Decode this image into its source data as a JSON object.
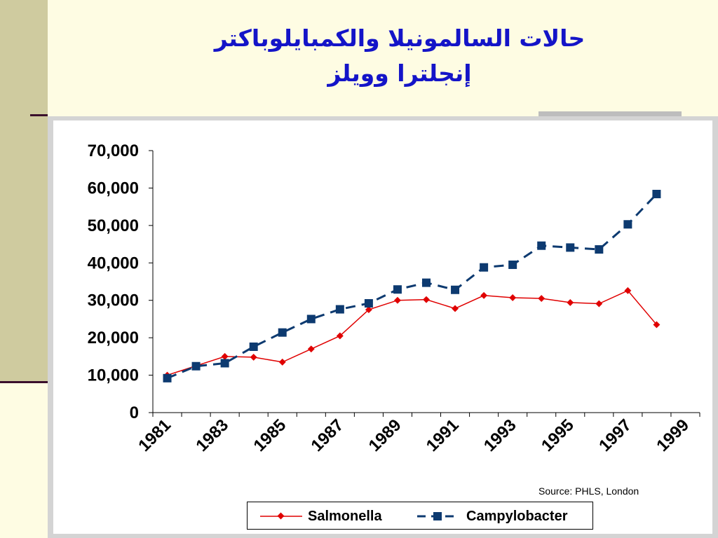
{
  "slide": {
    "title_line1": "حالات السالمونيلا والكمبايلوباكتر",
    "title_line2": "إنجلترا وويلز",
    "source": "Source: PHLS, London",
    "colors": {
      "background": "#FEFCE3",
      "sidebar": "#CFCB9F",
      "title": "#1414C8",
      "rule": "#3A0F2C"
    }
  },
  "chart_data": {
    "type": "line",
    "title": "",
    "xlabel": "",
    "ylabel": "",
    "x": [
      1981,
      1982,
      1983,
      1984,
      1985,
      1986,
      1987,
      1988,
      1989,
      1990,
      1991,
      1992,
      1993,
      1994,
      1995,
      1996,
      1997,
      1998
    ],
    "x_tick_labels": [
      "1981",
      "1983",
      "1985",
      "1987",
      "1989",
      "1991",
      "1993",
      "1995",
      "1997",
      "1999"
    ],
    "y_tick_labels": [
      "0",
      "10,000",
      "20,000",
      "30,000",
      "40,000",
      "50,000",
      "60,000",
      "70,000"
    ],
    "ylim": [
      0,
      70000
    ],
    "grid": false,
    "legend_position": "bottom",
    "series": [
      {
        "name": "Salmonella",
        "color": "#E00000",
        "line_style": "solid",
        "marker": "diamond",
        "values": [
          10000,
          12500,
          15000,
          14800,
          13500,
          17000,
          20500,
          27500,
          30000,
          30200,
          27800,
          31300,
          30700,
          30500,
          29400,
          29100,
          32600,
          23500
        ]
      },
      {
        "name": "Campylobacter",
        "color": "#0D3A70",
        "line_style": "dashed",
        "marker": "square",
        "values": [
          9200,
          12400,
          13200,
          17600,
          21400,
          25000,
          27600,
          29200,
          32900,
          34700,
          32800,
          38800,
          39500,
          44600,
          44100,
          43600,
          50300,
          58400
        ]
      }
    ]
  }
}
